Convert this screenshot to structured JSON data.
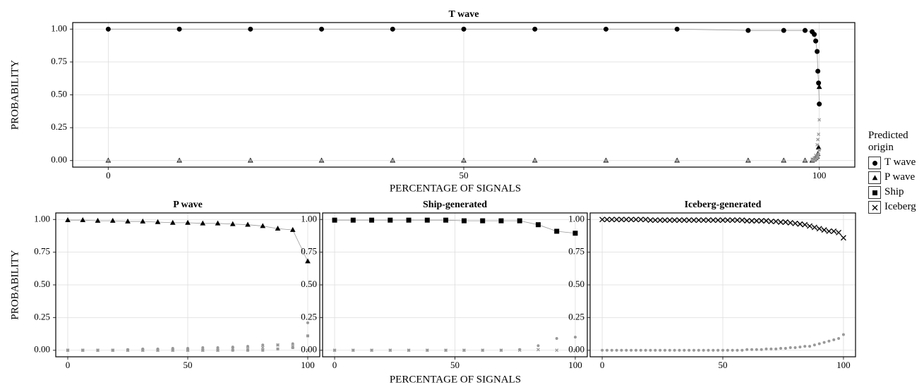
{
  "chart_data": [
    {
      "type": "scatter",
      "title": "T wave",
      "xlabel": "PERCENTAGE OF SIGNALS",
      "ylabel": "PROBABILITY",
      "x": [
        0,
        10,
        20,
        30,
        40,
        50,
        60,
        70,
        80,
        90,
        95,
        98,
        99,
        99.3,
        99.5,
        99.7,
        99.8,
        99.9,
        100
      ],
      "series": [
        {
          "name": "T wave",
          "marker": "circle",
          "color": "#000000",
          "line": true,
          "values": [
            1,
            1,
            1,
            1,
            1,
            1,
            1,
            1,
            1,
            0.99,
            0.99,
            0.99,
            0.98,
            0.96,
            0.91,
            0.83,
            0.68,
            0.59,
            0.43
          ]
        },
        {
          "name": "P wave",
          "marker": "triangle",
          "color": "#000000",
          "values": [
            0,
            0,
            0,
            0,
            0,
            0,
            0,
            0,
            0,
            0,
            0,
            0,
            0,
            0.01,
            0.02,
            0.03,
            0.05,
            0.1,
            0.56
          ]
        },
        {
          "name": "Ship",
          "marker": "square",
          "color": "#999999",
          "values": [
            0,
            0,
            0,
            0,
            0,
            0,
            0,
            0,
            0,
            0,
            0,
            0,
            0,
            0,
            0.01,
            0.02,
            0.03,
            0.05,
            0.08
          ]
        },
        {
          "name": "Iceberg",
          "marker": "cross",
          "color": "#999999",
          "values": [
            0,
            0,
            0,
            0,
            0,
            0,
            0,
            0,
            0,
            0,
            0,
            0,
            0.01,
            0.02,
            0.04,
            0.12,
            0.16,
            0.2,
            0.31
          ]
        }
      ],
      "xlim": [
        -5,
        105
      ],
      "ylim": [
        -0.05,
        1.05
      ],
      "xticks": [
        0,
        50,
        100
      ],
      "yticks": [
        {
          "value": 0,
          "label": "0.00"
        },
        {
          "value": 0.25,
          "label": "0.25"
        },
        {
          "value": 0.5,
          "label": "0.50"
        },
        {
          "value": 0.75,
          "label": "0.75"
        },
        {
          "value": 1,
          "label": "1.00"
        }
      ],
      "grid": true
    },
    {
      "type": "scatter",
      "title": "P wave",
      "ylabel": "PROBABILITY",
      "x": [
        0,
        6.25,
        12.5,
        18.75,
        25,
        31.25,
        37.5,
        43.75,
        50,
        56.25,
        62.5,
        68.75,
        75,
        81.25,
        87.5,
        93.75,
        100
      ],
      "series": [
        {
          "marker": "circle",
          "color": "#999999",
          "values": [
            0,
            0,
            0,
            0,
            0.005,
            0.01,
            0.01,
            0.015,
            0.015,
            0.02,
            0.02,
            0.025,
            0.03,
            0.04,
            0.04,
            0.05,
            0.21
          ]
        },
        {
          "marker": "square",
          "color": "#999999",
          "values": [
            0,
            0,
            0,
            0,
            0,
            0,
            0,
            0,
            0,
            0,
            0,
            0,
            0,
            0,
            0.01,
            0.02,
            0.11
          ]
        },
        {
          "marker": "cross",
          "color": "#999999",
          "values": [
            0,
            0,
            0,
            0,
            0,
            0,
            0,
            0,
            0,
            0,
            0,
            0.01,
            0.01,
            0.02,
            0.04,
            0.03,
            0
          ]
        },
        {
          "marker": "triangle",
          "color": "#000000",
          "line": true,
          "values": [
            0.995,
            0.995,
            0.99,
            0.99,
            0.985,
            0.985,
            0.98,
            0.975,
            0.975,
            0.97,
            0.97,
            0.965,
            0.96,
            0.95,
            0.93,
            0.92,
            0.68
          ]
        }
      ],
      "xlim": [
        -5,
        105
      ],
      "ylim": [
        -0.05,
        1.05
      ],
      "xticks": [
        0,
        50,
        100
      ],
      "yticks": [
        {
          "value": 0,
          "label": "0.00"
        },
        {
          "value": 0.25,
          "label": "0.25"
        },
        {
          "value": 0.5,
          "label": "0.50"
        },
        {
          "value": 0.75,
          "label": "0.75"
        },
        {
          "value": 1,
          "label": "1.00"
        }
      ],
      "grid": true
    },
    {
      "type": "scatter",
      "title": "Ship-generated",
      "xlabel": "PERCENTAGE OF SIGNALS",
      "x": [
        0,
        7.7,
        15.4,
        23.1,
        30.8,
        38.5,
        46.2,
        53.8,
        61.5,
        69.2,
        76.9,
        84.6,
        92.3,
        100
      ],
      "series": [
        {
          "marker": "circle",
          "color": "#999999",
          "values": [
            0,
            0,
            0,
            0,
            0,
            0,
            0,
            0,
            0,
            0,
            0.005,
            0.035,
            0.09,
            0.1
          ]
        },
        {
          "marker": "cross",
          "color": "#999999",
          "values": [
            0,
            0,
            0,
            0,
            0,
            0,
            0,
            0,
            0,
            0,
            0,
            0.005,
            0,
            0
          ]
        },
        {
          "marker": "square",
          "color": "#000000",
          "line": true,
          "values": [
            0.995,
            0.995,
            0.995,
            0.995,
            0.995,
            0.995,
            0.995,
            0.99,
            0.99,
            0.99,
            0.99,
            0.96,
            0.91,
            0.895
          ]
        }
      ],
      "xlim": [
        -5,
        105
      ],
      "ylim": [
        -0.05,
        1.05
      ],
      "xticks": [
        0,
        50,
        100
      ],
      "yticks": [
        {
          "value": 0,
          "label": "0.00"
        },
        {
          "value": 0.25,
          "label": "0.25"
        },
        {
          "value": 0.5,
          "label": "0.50"
        },
        {
          "value": 0.75,
          "label": "0.75"
        },
        {
          "value": 1,
          "label": "1.00"
        }
      ],
      "grid": true
    },
    {
      "type": "scatter",
      "title": "Iceberg-generated",
      "x": [
        0,
        2,
        4,
        6,
        8,
        10,
        12,
        14,
        16,
        18,
        20,
        22,
        24,
        26,
        28,
        30,
        32,
        34,
        36,
        38,
        40,
        42,
        44,
        46,
        48,
        50,
        52,
        54,
        56,
        58,
        60,
        62,
        64,
        66,
        68,
        70,
        72,
        74,
        76,
        78,
        80,
        82,
        84,
        86,
        88,
        90,
        92,
        94,
        96,
        98,
        100
      ],
      "series": [
        {
          "marker": "circle",
          "color": "#999999",
          "values": [
            0,
            0,
            0,
            0,
            0,
            0,
            0,
            0,
            0,
            0,
            0,
            0,
            0,
            0,
            0,
            0,
            0,
            0,
            0,
            0,
            0,
            0,
            0,
            0,
            0,
            0,
            0,
            0,
            0,
            0,
            0.005,
            0.005,
            0.005,
            0.005,
            0.01,
            0.01,
            0.01,
            0.015,
            0.015,
            0.02,
            0.02,
            0.025,
            0.03,
            0.03,
            0.04,
            0.05,
            0.06,
            0.07,
            0.08,
            0.09,
            0.12
          ]
        },
        {
          "marker": "cross",
          "color": "#000000",
          "line": true,
          "values": [
            1,
            1,
            1,
            1,
            1,
            1,
            1,
            1,
            1,
            1,
            0.995,
            0.995,
            0.995,
            0.995,
            0.995,
            0.995,
            0.995,
            0.995,
            0.995,
            0.995,
            0.995,
            0.995,
            0.995,
            0.995,
            0.995,
            0.995,
            0.995,
            0.995,
            0.995,
            0.995,
            0.99,
            0.99,
            0.99,
            0.99,
            0.99,
            0.985,
            0.985,
            0.98,
            0.98,
            0.975,
            0.97,
            0.965,
            0.96,
            0.95,
            0.94,
            0.93,
            0.92,
            0.91,
            0.91,
            0.9,
            0.86
          ]
        }
      ],
      "xlim": [
        -5,
        105
      ],
      "ylim": [
        -0.05,
        1.05
      ],
      "xticks": [
        0,
        50,
        100
      ],
      "yticks": [
        {
          "value": 0,
          "label": "0.00"
        },
        {
          "value": 0.25,
          "label": "0.25"
        },
        {
          "value": 0.5,
          "label": "0.50"
        },
        {
          "value": 0.75,
          "label": "0.75"
        },
        {
          "value": 1,
          "label": "1.00"
        }
      ],
      "grid": true
    }
  ],
  "legend": {
    "title": "Predicted origin"
  }
}
